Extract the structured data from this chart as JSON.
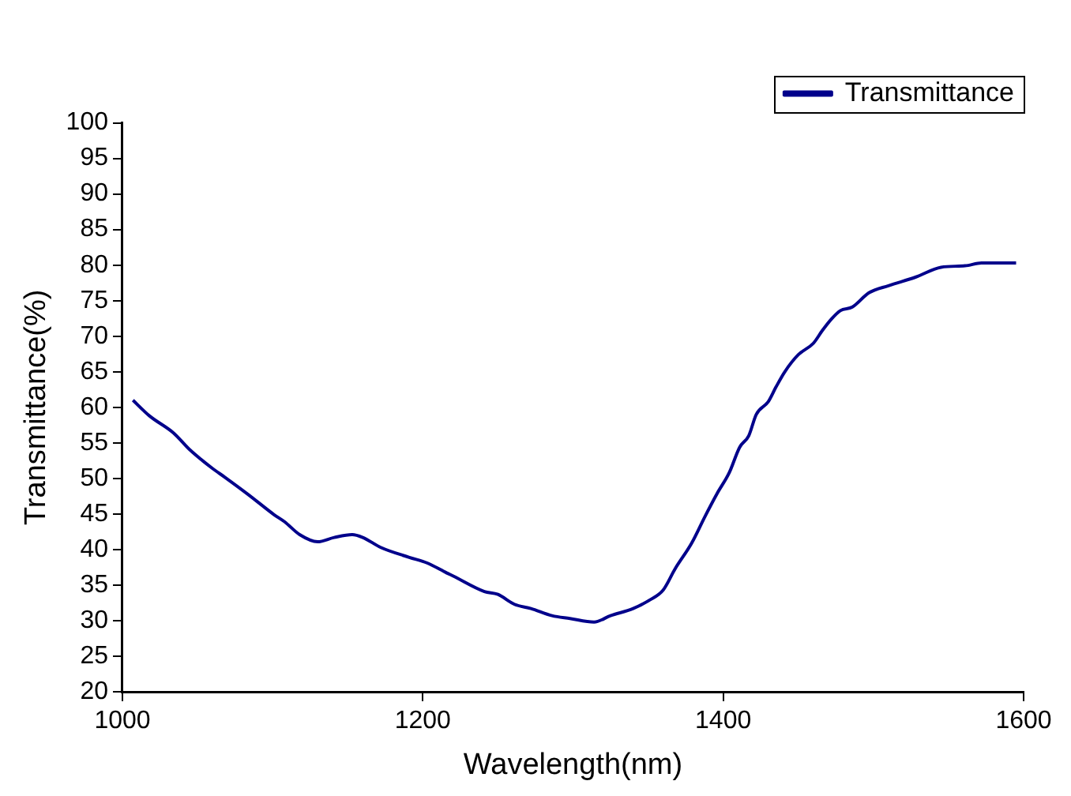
{
  "chart_data": {
    "type": "line",
    "xlabel": "Wavelength(nm)",
    "ylabel": "Transmittance(%)",
    "xlim": [
      1000,
      1600
    ],
    "xticks": [
      1000,
      1200,
      1400,
      1600
    ],
    "ylim": [
      20,
      100
    ],
    "yticks": [
      20,
      25,
      30,
      35,
      40,
      45,
      50,
      55,
      60,
      65,
      70,
      75,
      80,
      85,
      90,
      95,
      100
    ],
    "grid": false,
    "legend": "top right",
    "marker": "none",
    "line_style": "solid",
    "series": [
      {
        "name": "Transmittance",
        "color": "#00008b",
        "x": [
          1007,
          1018,
          1034,
          1045,
          1060,
          1068,
          1084,
          1101,
          1108,
          1118,
          1130,
          1141,
          1153,
          1160,
          1172,
          1191,
          1203,
          1216,
          1220,
          1241,
          1250,
          1261,
          1272,
          1286,
          1298,
          1314,
          1325,
          1340,
          1351,
          1360,
          1368,
          1379,
          1388,
          1396,
          1404,
          1411,
          1417,
          1422,
          1430,
          1435,
          1441,
          1450,
          1460,
          1466,
          1472,
          1478,
          1486,
          1497,
          1510,
          1528,
          1545,
          1561,
          1572,
          1595
        ],
        "values": [
          61.0,
          58.8,
          56.4,
          54.0,
          51.4,
          50.2,
          47.7,
          44.9,
          43.9,
          42.1,
          41.1,
          41.7,
          42.1,
          41.7,
          40.3,
          38.9,
          38.1,
          36.7,
          36.3,
          34.1,
          33.7,
          32.3,
          31.7,
          30.7,
          30.3,
          29.8,
          30.7,
          31.7,
          32.9,
          34.3,
          37.3,
          40.9,
          44.7,
          47.9,
          50.8,
          54.4,
          56.0,
          59.0,
          60.8,
          62.8,
          65.0,
          67.4,
          69.0,
          70.8,
          72.4,
          73.6,
          74.1,
          76.1,
          77.1,
          78.3,
          79.7,
          79.9,
          80.3,
          80.3
        ]
      }
    ]
  }
}
